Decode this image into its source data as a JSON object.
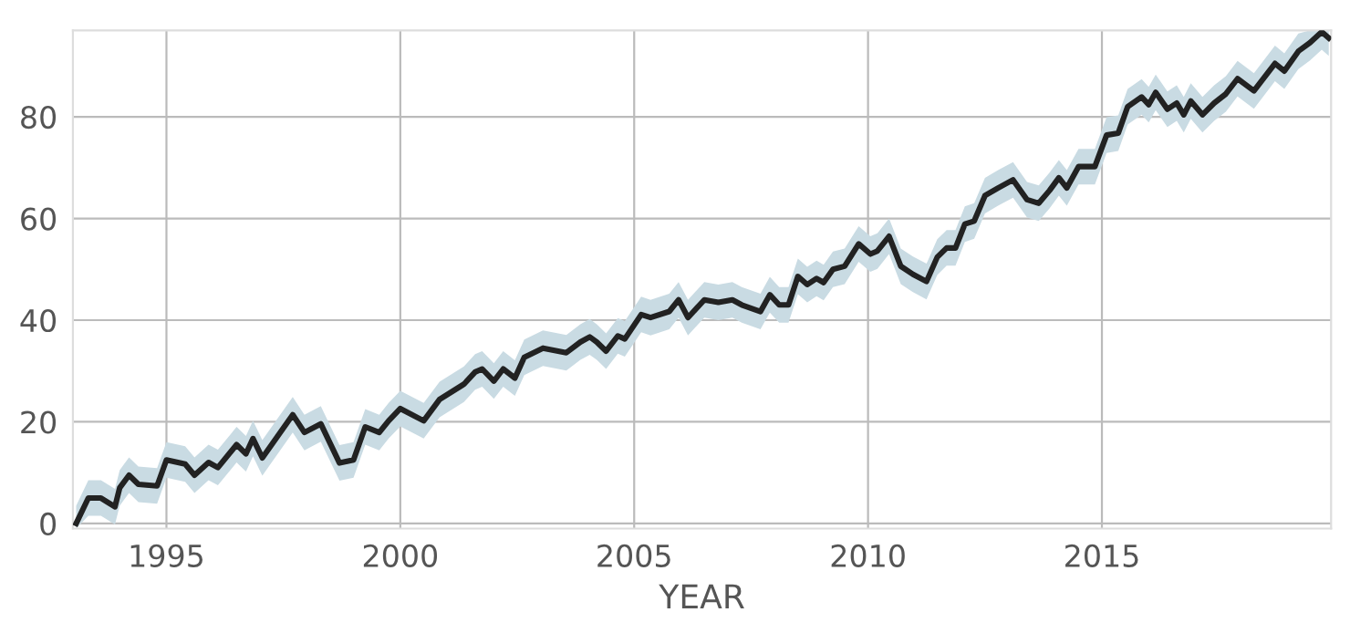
{
  "chart_data": {
    "type": "line",
    "xlabel": "YEAR",
    "x": [
      1993.07,
      1993.33,
      1993.6,
      1993.9,
      1994.0,
      1994.2,
      1994.4,
      1994.8,
      1995.0,
      1995.4,
      1995.6,
      1995.9,
      1996.1,
      1996.5,
      1996.7,
      1996.85,
      1997.05,
      1997.7,
      1997.95,
      1998.3,
      1998.7,
      1999.0,
      1999.25,
      1999.55,
      1999.75,
      2000.0,
      2000.5,
      2000.84,
      2001.36,
      2001.6,
      2001.75,
      2002.0,
      2002.2,
      2002.45,
      2002.65,
      2003.05,
      2003.55,
      2003.85,
      2004.05,
      2004.2,
      2004.4,
      2004.65,
      2004.8,
      2005.15,
      2005.35,
      2005.75,
      2005.95,
      2006.15,
      2006.5,
      2006.8,
      2007.1,
      2007.3,
      2007.7,
      2007.9,
      2008.1,
      2008.3,
      2008.5,
      2008.7,
      2008.9,
      2009.05,
      2009.25,
      2009.5,
      2009.8,
      2010.05,
      2010.2,
      2010.45,
      2010.7,
      2010.96,
      2011.25,
      2011.48,
      2011.68,
      2011.87,
      2012.07,
      2012.27,
      2012.5,
      2012.78,
      2013.1,
      2013.4,
      2013.65,
      2013.88,
      2014.08,
      2014.25,
      2014.5,
      2014.85,
      2015.1,
      2015.35,
      2015.55,
      2015.85,
      2016.0,
      2016.15,
      2016.4,
      2016.6,
      2016.75,
      2016.9,
      2017.15,
      2017.4,
      2017.65,
      2017.9,
      2018.25,
      2018.7,
      2018.9,
      2019.2,
      2019.45,
      2019.7,
      2019.85
    ],
    "series": [
      {
        "color": "#222222",
        "values": [
          0,
          5,
          5,
          3.3,
          7,
          9.5,
          7.7,
          7.4,
          12.5,
          11.7,
          9.5,
          12,
          11,
          15.5,
          13.7,
          16.7,
          12.9,
          21.4,
          17.9,
          19.6,
          11.9,
          12.5,
          19,
          17.9,
          20.2,
          22.6,
          20.2,
          24.4,
          27.4,
          29.8,
          30.4,
          28,
          30.4,
          28.6,
          32.7,
          34.5,
          33.6,
          35.7,
          36.7,
          35.7,
          33.9,
          36.9,
          36.3,
          41.1,
          40.5,
          41.7,
          44,
          40.5,
          44,
          43.5,
          44,
          43,
          41.7,
          45,
          43,
          43,
          48.6,
          47,
          48.2,
          47.4,
          50,
          50.6,
          55,
          53,
          53.6,
          56.5,
          50.6,
          49,
          47.6,
          52.4,
          54.2,
          54.2,
          58.9,
          59.5,
          64.5,
          66,
          67.6,
          63.7,
          63,
          65.5,
          68,
          66,
          70.2,
          70.2,
          76.4,
          76.8,
          82,
          83.9,
          82.4,
          84.8,
          81.5,
          82.7,
          80.4,
          83.1,
          80.4,
          82.7,
          84.5,
          87.5,
          85.1,
          90.5,
          89,
          92.9,
          94.6,
          96.7,
          95.5
        ],
        "lower": [
          -1,
          1.5,
          1.5,
          -0.2,
          3.5,
          6,
          4.2,
          3.9,
          9,
          8.2,
          6,
          8.5,
          7.5,
          12,
          10.2,
          13.2,
          9.4,
          17.9,
          14.4,
          16.1,
          8.4,
          9,
          15.5,
          14.4,
          16.7,
          19.1,
          16.7,
          20.9,
          23.9,
          26.3,
          26.9,
          24.5,
          26.9,
          25.1,
          29.2,
          31,
          30.1,
          32.2,
          33.2,
          32.2,
          30.4,
          33.4,
          32.8,
          37.6,
          37,
          38.2,
          40.5,
          37,
          40.5,
          40,
          40.5,
          39.5,
          38.2,
          41.5,
          39.5,
          39.5,
          45.1,
          43.5,
          44.7,
          43.9,
          46.5,
          47.1,
          51.5,
          49.5,
          50.1,
          53,
          47.1,
          45.5,
          44.1,
          48.9,
          50.7,
          50.7,
          55.4,
          56,
          61,
          62.5,
          64.1,
          60.2,
          59.5,
          62,
          64.5,
          62.5,
          66.7,
          66.7,
          72.9,
          73.3,
          78.5,
          80.4,
          78.9,
          81.3,
          78,
          79.2,
          76.9,
          79.6,
          76.9,
          79.2,
          81,
          84,
          81.6,
          87,
          85.5,
          89.4,
          91.1,
          93.2,
          92
        ],
        "upper": [
          3.5,
          8.5,
          8.5,
          6.8,
          10.5,
          13,
          11.2,
          10.9,
          16,
          15.2,
          13,
          15.5,
          14.5,
          19,
          17.2,
          20.2,
          16.4,
          24.9,
          21.4,
          23.1,
          15.4,
          16,
          22.5,
          21.4,
          23.7,
          26.1,
          23.7,
          27.9,
          30.9,
          33.3,
          33.9,
          31.5,
          33.9,
          32.1,
          36.2,
          38,
          37.1,
          39.2,
          40.2,
          39.2,
          37.4,
          40.4,
          39.8,
          44.6,
          44,
          45.2,
          47.5,
          44,
          47.5,
          47,
          47.5,
          46.5,
          45.2,
          48.5,
          46.5,
          46.5,
          52.1,
          50.5,
          51.7,
          50.9,
          53.5,
          54.1,
          58.5,
          56.5,
          57.1,
          60,
          54.1,
          52.5,
          51.1,
          55.9,
          57.7,
          57.7,
          62.4,
          63,
          68,
          69.5,
          71.1,
          67.2,
          66.5,
          69,
          71.5,
          69.5,
          73.7,
          73.7,
          79.9,
          80.3,
          85.5,
          87.4,
          85.9,
          88.3,
          85,
          86.2,
          83.9,
          86.6,
          83.9,
          86.2,
          88,
          91,
          88.6,
          94,
          92.5,
          96.4,
          97,
          97,
          97
        ]
      }
    ],
    "xlim": [
      1993,
      2019.9
    ],
    "ylim": [
      -1,
      97
    ],
    "xticks": [
      1995,
      2000,
      2005,
      2010,
      2015
    ],
    "yticks": [
      0,
      20,
      40,
      60,
      80
    ],
    "grid": true,
    "marker": "none",
    "line_style": "solid"
  }
}
